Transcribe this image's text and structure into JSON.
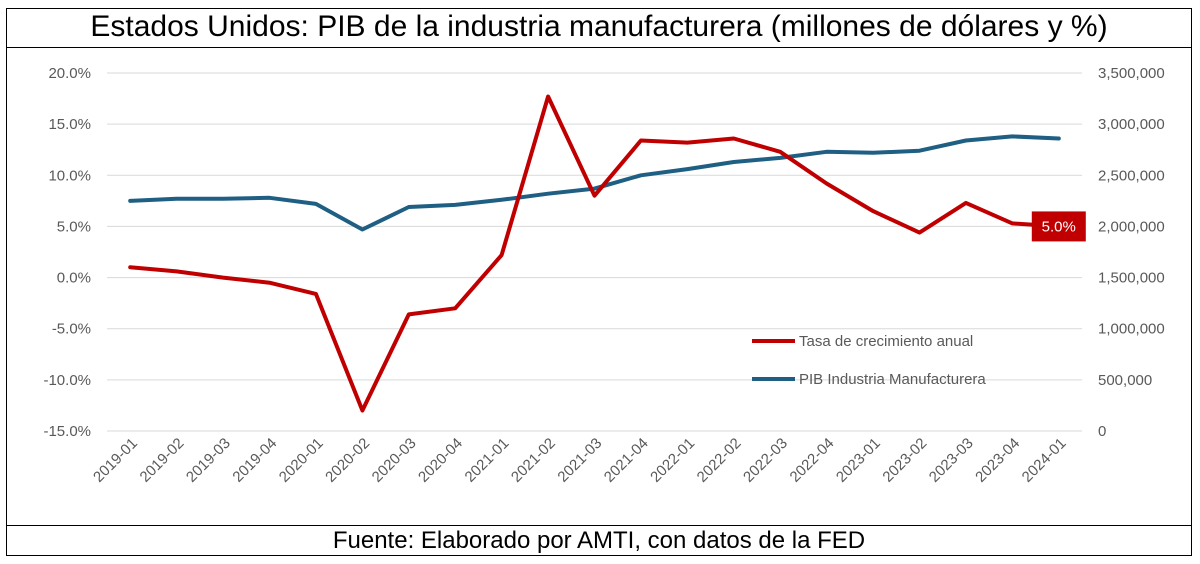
{
  "title": "Estados Unidos: PIB de la industria manufacturera (millones de dólares y %)",
  "source": "Fuente: Elaborado por AMTI, con datos de la FED",
  "chart_data": {
    "type": "line",
    "title": "Estados Unidos: PIB de la industria manufacturera (millones de dólares y %)",
    "categories": [
      "2019-01",
      "2019-02",
      "2019-03",
      "2019-04",
      "2020-01",
      "2020-02",
      "2020-03",
      "2020-04",
      "2021-01",
      "2021-02",
      "2021-03",
      "2021-04",
      "2022-01",
      "2022-02",
      "2022-03",
      "2022-04",
      "2023-01",
      "2023-02",
      "2023-03",
      "2023-04",
      "2024-01"
    ],
    "y_left": {
      "min": -15,
      "max": 20,
      "step": 5,
      "tick_labels": [
        "-15.0%",
        "-10.0%",
        "-5.0%",
        "0.0%",
        "5.0%",
        "10.0%",
        "15.0%",
        "20.0%"
      ]
    },
    "y_right": {
      "min": 0,
      "max": 3500000,
      "step": 500000,
      "tick_labels": [
        "0",
        "500,000",
        "1,000,000",
        "1,500,000",
        "2,000,000",
        "2,500,000",
        "3,000,000",
        "3,500,000"
      ]
    },
    "series": [
      {
        "name": "Tasa de crecimiento anual",
        "axis": "left",
        "color": "#C00000",
        "values": [
          1.0,
          0.6,
          0.0,
          -0.5,
          -1.6,
          -13.0,
          -3.6,
          -3.0,
          2.2,
          17.7,
          8.0,
          13.4,
          13.2,
          13.6,
          12.3,
          9.2,
          6.5,
          4.4,
          7.3,
          5.3,
          5.0
        ]
      },
      {
        "name": "PIB Industria Manufacturera",
        "axis": "right",
        "color": "#1F5F84",
        "values": [
          2250000,
          2270000,
          2270000,
          2280000,
          2220000,
          1970000,
          2190000,
          2210000,
          2260000,
          2320000,
          2370000,
          2500000,
          2560000,
          2630000,
          2670000,
          2730000,
          2720000,
          2740000,
          2840000,
          2880000,
          2860000
        ]
      }
    ],
    "end_label": "5.0%",
    "end_label_color": "#C00000",
    "legend_position": "center-right",
    "grid": true
  }
}
